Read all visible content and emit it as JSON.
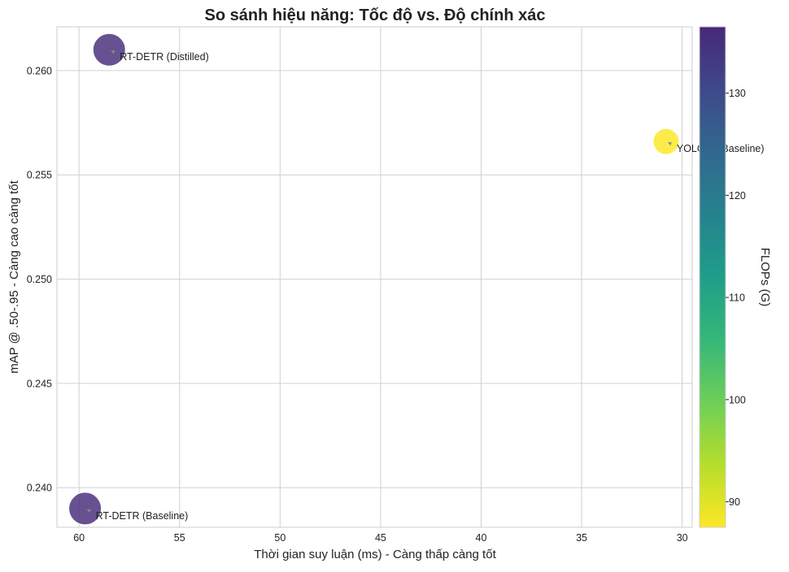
{
  "chart_data": {
    "type": "scatter",
    "title": "So sánh hiệu năng: Tốc độ vs. Độ chính xác",
    "xlabel": "Thời gian suy luận (ms) - Càng thấp càng tốt",
    "ylabel": "mAP @ .50-.95 - Càng cao càng tốt",
    "x_inverted": true,
    "xlim": [
      61.1,
      29.5
    ],
    "ylim": [
      0.2381,
      0.2621
    ],
    "x_ticks": [
      60,
      55,
      50,
      45,
      40,
      35,
      30
    ],
    "y_ticks": [
      0.24,
      0.245,
      0.25,
      0.255,
      0.26
    ],
    "y_tick_labels": [
      "0.240",
      "0.245",
      "0.250",
      "0.255",
      "0.260"
    ],
    "grid": true,
    "colorbar": {
      "label": "FLOPs (G)",
      "colormap": "viridis",
      "range": [
        87.5,
        136.5
      ],
      "ticks": [
        90,
        100,
        110,
        120,
        130
      ]
    },
    "points": [
      {
        "label": "RT-DETR (Distilled)",
        "x": 58.5,
        "y": 0.261,
        "flops": 136,
        "size": 30
      },
      {
        "label": "YOLOv8 (Baseline)",
        "x": 30.8,
        "y": 0.2566,
        "flops": 87.6,
        "size": 24
      },
      {
        "label": "RT-DETR (Baseline)",
        "x": 59.7,
        "y": 0.239,
        "flops": 136,
        "size": 30
      }
    ]
  }
}
